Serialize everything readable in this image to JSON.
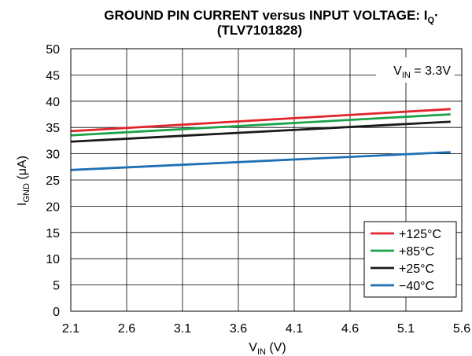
{
  "chart_data": {
    "type": "line",
    "title": {
      "main": "GROUND PIN CURRENT versus INPUT VOLTAGE: I",
      "main_sub": "Q",
      "main_tail": "·",
      "second": "(TLV7101828)"
    },
    "xlabel": {
      "main": "V",
      "sub": "IN",
      "unit": " (V)"
    },
    "ylabel": {
      "main": "I",
      "sub": "GND",
      "unit": " (μA)"
    },
    "xlim": [
      2.1,
      5.6
    ],
    "ylim": [
      0,
      50
    ],
    "xticks": [
      "2.1",
      "2.6",
      "3.1",
      "3.6",
      "4.1",
      "4.6",
      "5.1",
      "5.6"
    ],
    "yticks": [
      "0",
      "5",
      "10",
      "15",
      "20",
      "25",
      "30",
      "35",
      "40",
      "45",
      "50"
    ],
    "grid": true,
    "annotation": {
      "main": "V",
      "sub": "IN",
      "rest": " = 3.3V"
    },
    "legend_position": "bottom-right",
    "series": [
      {
        "name": "+125°C",
        "color": "#e0262b",
        "x": [
          2.1,
          5.5
        ],
        "y": [
          34.3,
          38.5
        ]
      },
      {
        "name": "+85°C",
        "color": "#1ba34a",
        "x": [
          2.1,
          5.5
        ],
        "y": [
          33.5,
          37.5
        ]
      },
      {
        "name": "+25°C",
        "color": "#1a1a1a",
        "x": [
          2.1,
          5.5
        ],
        "y": [
          32.3,
          36.1
        ]
      },
      {
        "name": "−40°C",
        "color": "#1f6fb5",
        "x": [
          2.1,
          5.5
        ],
        "y": [
          26.9,
          30.3
        ]
      }
    ]
  }
}
